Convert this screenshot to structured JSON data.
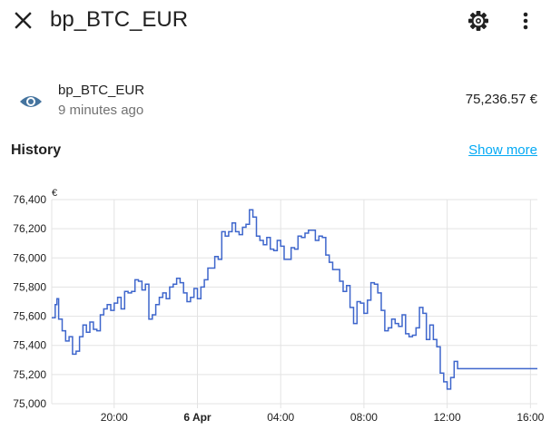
{
  "header": {
    "title": "bp_BTC_EUR",
    "close_icon": "close-icon",
    "settings_icon": "gear-icon",
    "menu_icon": "dots-vertical-icon"
  },
  "entity": {
    "icon": "eye-icon",
    "name": "bp_BTC_EUR",
    "last_changed": "9 minutes ago",
    "state": "75,236.57 €",
    "icon_color": "#44739e"
  },
  "history": {
    "title": "History",
    "show_more": "Show more",
    "link_color": "#03a9f4"
  },
  "chart_data": {
    "type": "line",
    "step": true,
    "line_color": "#3e66cc",
    "unit_label": "€",
    "grid": true,
    "ylim": [
      75000,
      76400
    ],
    "yticks": [
      {
        "value": 76400,
        "label": "76,400"
      },
      {
        "value": 76200,
        "label": "76,200"
      },
      {
        "value": 76000,
        "label": "76,000"
      },
      {
        "value": 75800,
        "label": "75,800"
      },
      {
        "value": 75600,
        "label": "75,600"
      },
      {
        "value": 75400,
        "label": "75,400"
      },
      {
        "value": 75200,
        "label": "75,200"
      },
      {
        "value": 75000,
        "label": "75,000"
      }
    ],
    "x_start": "5 Apr 17:00",
    "x_end": "6 Apr 16:20",
    "xticks": [
      {
        "x": "5 Apr 20:00",
        "label": "20:00",
        "bold": false
      },
      {
        "x": "6 Apr 00:00",
        "label": "6 Apr",
        "bold": true
      },
      {
        "x": "6 Apr 04:00",
        "label": "04:00",
        "bold": false
      },
      {
        "x": "6 Apr 08:00",
        "label": "08:00",
        "bold": false
      },
      {
        "x": "6 Apr 12:00",
        "label": "12:00",
        "bold": false
      },
      {
        "x": "6 Apr 16:00",
        "label": "16:00",
        "bold": false
      }
    ],
    "series": [
      {
        "points": [
          [
            "5 Apr 17:00",
            75590
          ],
          [
            "5 Apr 17:10",
            75680
          ],
          [
            "5 Apr 17:15",
            75720
          ],
          [
            "5 Apr 17:20",
            75580
          ],
          [
            "5 Apr 17:30",
            75500
          ],
          [
            "5 Apr 17:40",
            75430
          ],
          [
            "5 Apr 17:50",
            75460
          ],
          [
            "5 Apr 18:00",
            75340
          ],
          [
            "5 Apr 18:10",
            75360
          ],
          [
            "5 Apr 18:20",
            75460
          ],
          [
            "5 Apr 18:30",
            75540
          ],
          [
            "5 Apr 18:40",
            75490
          ],
          [
            "5 Apr 18:50",
            75560
          ],
          [
            "5 Apr 19:00",
            75510
          ],
          [
            "5 Apr 19:10",
            75500
          ],
          [
            "5 Apr 19:20",
            75610
          ],
          [
            "5 Apr 19:30",
            75650
          ],
          [
            "5 Apr 19:40",
            75680
          ],
          [
            "5 Apr 19:50",
            75640
          ],
          [
            "5 Apr 20:00",
            75690
          ],
          [
            "5 Apr 20:10",
            75730
          ],
          [
            "5 Apr 20:20",
            75650
          ],
          [
            "5 Apr 20:30",
            75770
          ],
          [
            "5 Apr 20:40",
            75760
          ],
          [
            "5 Apr 20:50",
            75770
          ],
          [
            "5 Apr 21:00",
            75850
          ],
          [
            "5 Apr 21:10",
            75840
          ],
          [
            "5 Apr 21:20",
            75780
          ],
          [
            "5 Apr 21:30",
            75820
          ],
          [
            "5 Apr 21:40",
            75580
          ],
          [
            "5 Apr 21:50",
            75610
          ],
          [
            "5 Apr 22:00",
            75680
          ],
          [
            "5 Apr 22:10",
            75730
          ],
          [
            "5 Apr 22:20",
            75760
          ],
          [
            "5 Apr 22:30",
            75720
          ],
          [
            "5 Apr 22:40",
            75800
          ],
          [
            "5 Apr 22:50",
            75820
          ],
          [
            "5 Apr 23:00",
            75860
          ],
          [
            "5 Apr 23:10",
            75830
          ],
          [
            "5 Apr 23:20",
            75760
          ],
          [
            "5 Apr 23:30",
            75700
          ],
          [
            "5 Apr 23:40",
            75730
          ],
          [
            "5 Apr 23:50",
            75790
          ],
          [
            "6 Apr 00:00",
            75720
          ],
          [
            "6 Apr 00:10",
            75800
          ],
          [
            "6 Apr 00:20",
            75850
          ],
          [
            "6 Apr 00:30",
            75930
          ],
          [
            "6 Apr 00:40",
            75930
          ],
          [
            "6 Apr 00:50",
            76010
          ],
          [
            "6 Apr 01:00",
            75990
          ],
          [
            "6 Apr 01:10",
            76180
          ],
          [
            "6 Apr 01:20",
            76150
          ],
          [
            "6 Apr 01:30",
            76180
          ],
          [
            "6 Apr 01:40",
            76240
          ],
          [
            "6 Apr 01:50",
            76180
          ],
          [
            "6 Apr 02:00",
            76160
          ],
          [
            "6 Apr 02:10",
            76210
          ],
          [
            "6 Apr 02:20",
            76230
          ],
          [
            "6 Apr 02:30",
            76330
          ],
          [
            "6 Apr 02:40",
            76280
          ],
          [
            "6 Apr 02:50",
            76150
          ],
          [
            "6 Apr 03:00",
            76120
          ],
          [
            "6 Apr 03:10",
            76090
          ],
          [
            "6 Apr 03:20",
            76140
          ],
          [
            "6 Apr 03:30",
            76060
          ],
          [
            "6 Apr 03:40",
            76050
          ],
          [
            "6 Apr 03:50",
            76120
          ],
          [
            "6 Apr 04:00",
            76080
          ],
          [
            "6 Apr 04:10",
            75990
          ],
          [
            "6 Apr 04:20",
            75990
          ],
          [
            "6 Apr 04:30",
            76070
          ],
          [
            "6 Apr 04:40",
            76060
          ],
          [
            "6 Apr 04:50",
            76150
          ],
          [
            "6 Apr 05:00",
            76140
          ],
          [
            "6 Apr 05:10",
            76170
          ],
          [
            "6 Apr 05:20",
            76190
          ],
          [
            "6 Apr 05:30",
            76190
          ],
          [
            "6 Apr 05:40",
            76120
          ],
          [
            "6 Apr 05:50",
            76150
          ],
          [
            "6 Apr 06:00",
            76140
          ],
          [
            "6 Apr 06:10",
            76020
          ],
          [
            "6 Apr 06:20",
            75970
          ],
          [
            "6 Apr 06:30",
            75920
          ],
          [
            "6 Apr 06:40",
            75920
          ],
          [
            "6 Apr 06:50",
            75840
          ],
          [
            "6 Apr 07:00",
            75770
          ],
          [
            "6 Apr 07:10",
            75810
          ],
          [
            "6 Apr 07:20",
            75660
          ],
          [
            "6 Apr 07:30",
            75550
          ],
          [
            "6 Apr 07:40",
            75700
          ],
          [
            "6 Apr 07:50",
            75690
          ],
          [
            "6 Apr 08:00",
            75620
          ],
          [
            "6 Apr 08:10",
            75710
          ],
          [
            "6 Apr 08:20",
            75830
          ],
          [
            "6 Apr 08:30",
            75820
          ],
          [
            "6 Apr 08:40",
            75760
          ],
          [
            "6 Apr 08:50",
            75640
          ],
          [
            "6 Apr 09:00",
            75500
          ],
          [
            "6 Apr 09:10",
            75520
          ],
          [
            "6 Apr 09:20",
            75580
          ],
          [
            "6 Apr 09:30",
            75550
          ],
          [
            "6 Apr 09:40",
            75530
          ],
          [
            "6 Apr 09:50",
            75610
          ],
          [
            "6 Apr 10:00",
            75480
          ],
          [
            "6 Apr 10:10",
            75460
          ],
          [
            "6 Apr 10:20",
            75470
          ],
          [
            "6 Apr 10:30",
            75520
          ],
          [
            "6 Apr 10:40",
            75660
          ],
          [
            "6 Apr 10:50",
            75620
          ],
          [
            "6 Apr 11:00",
            75440
          ],
          [
            "6 Apr 11:10",
            75540
          ],
          [
            "6 Apr 11:20",
            75440
          ],
          [
            "6 Apr 11:30",
            75390
          ],
          [
            "6 Apr 11:40",
            75210
          ],
          [
            "6 Apr 11:50",
            75150
          ],
          [
            "6 Apr 12:00",
            75100
          ],
          [
            "6 Apr 12:10",
            75180
          ],
          [
            "6 Apr 12:20",
            75290
          ],
          [
            "6 Apr 12:30",
            75240
          ]
        ]
      }
    ]
  }
}
